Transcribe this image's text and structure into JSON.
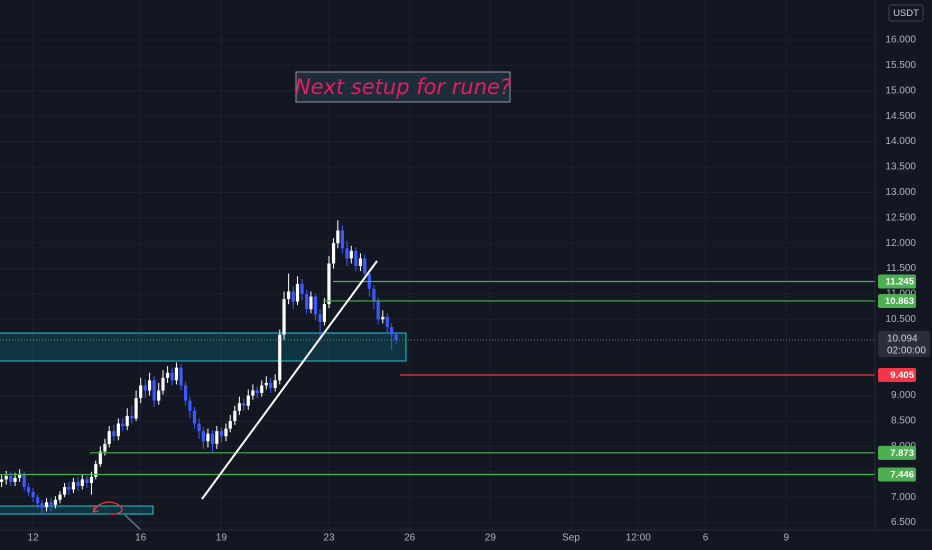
{
  "chart_data": {
    "type": "candlestick",
    "title": "Next setup for rune?",
    "currency": "USDT",
    "countdown": "02:00:00",
    "up_color": "#ffffff",
    "down_color": "#3d5afe",
    "grid": true,
    "xlim": [
      10.77,
      43.3
    ],
    "ylim": [
      6.354,
      16.787
    ],
    "xticks": [
      12,
      16,
      19,
      23,
      26,
      29,
      {
        "value": 32,
        "label": "Sep"
      },
      {
        "value": 34.5,
        "label": "12:00"
      },
      {
        "value": 37,
        "label": "6"
      },
      {
        "value": 40,
        "label": "9"
      }
    ],
    "yticks": [
      {
        "value": 6.5,
        "label": "6.500"
      },
      {
        "value": 7,
        "label": "7.000"
      },
      {
        "value": 7.5,
        "label": "7.500"
      },
      {
        "value": 8,
        "label": "8.000"
      },
      {
        "value": 8.5,
        "label": "8.500"
      },
      {
        "value": 9,
        "label": "9.000"
      },
      {
        "value": 10.5,
        "label": "10.500"
      },
      {
        "value": 11,
        "label": "11.000"
      },
      {
        "value": 11.5,
        "label": "11.500"
      },
      {
        "value": 12,
        "label": "12.000"
      },
      {
        "value": 12.5,
        "label": "12.500"
      },
      {
        "value": 13,
        "label": "13.000"
      },
      {
        "value": 13.5,
        "label": "13.500"
      },
      {
        "value": 14,
        "label": "14.000"
      },
      {
        "value": 14.5,
        "label": "14.500"
      },
      {
        "value": 15,
        "label": "15.000"
      },
      {
        "value": 15.5,
        "label": "15.500"
      },
      {
        "value": 16,
        "label": "16.000"
      }
    ],
    "levels": [
      {
        "value": 11.245,
        "color": "#4caf50"
      },
      {
        "value": 10.863,
        "color": "#4caf50"
      },
      {
        "value": 9.405,
        "color": "#f23645"
      },
      {
        "value": 7.873,
        "color": "#4caf50"
      },
      {
        "value": 7.446,
        "color": "#4caf50"
      }
    ],
    "x": [
      10.83,
      11,
      11.17,
      11.33,
      11.5,
      11.67,
      11.83,
      12,
      12.17,
      12.33,
      12.5,
      12.67,
      12.83,
      13,
      13.17,
      13.33,
      13.5,
      13.67,
      13.83,
      14,
      14.17,
      14.33,
      14.5,
      14.67,
      14.83,
      15,
      15.17,
      15.33,
      15.5,
      15.67,
      15.83,
      16,
      16.17,
      16.33,
      16.5,
      16.67,
      16.83,
      17,
      17.17,
      17.33,
      17.5,
      17.67,
      17.83,
      18,
      18.17,
      18.33,
      18.5,
      18.67,
      18.83,
      19,
      19.17,
      19.33,
      19.5,
      19.67,
      19.83,
      20,
      20.17,
      20.33,
      20.5,
      20.67,
      20.83,
      21,
      21.17,
      21.33,
      21.5,
      21.67,
      21.83,
      22,
      22.17,
      22.33,
      22.5,
      22.67,
      22.83,
      23,
      23.17,
      23.33,
      23.5,
      23.67,
      23.83,
      24,
      24.17,
      24.33,
      24.5,
      24.67,
      24.83,
      25,
      25.17,
      25.33,
      25.5
    ],
    "open": [
      7.3,
      7.35,
      7.42,
      7.3,
      7.38,
      7.45,
      7.2,
      7.1,
      7.0,
      6.88,
      6.8,
      6.9,
      6.85,
      6.95,
      7.05,
      7.2,
      7.15,
      7.3,
      7.22,
      7.35,
      7.28,
      7.4,
      7.65,
      7.9,
      8.05,
      8.3,
      8.2,
      8.45,
      8.4,
      8.6,
      8.55,
      8.95,
      9.2,
      9.1,
      9.3,
      8.9,
      9.1,
      9.35,
      9.45,
      9.3,
      9.55,
      9.2,
      8.9,
      8.7,
      8.45,
      8.3,
      8.1,
      8.25,
      8.05,
      8.3,
      8.2,
      8.35,
      8.5,
      8.7,
      8.85,
      8.8,
      9.0,
      9.1,
      9.05,
      9.2,
      9.25,
      9.15,
      9.3,
      10.2,
      10.9,
      11.05,
      10.85,
      11.2,
      11.0,
      10.7,
      10.95,
      10.6,
      10.45,
      10.8,
      11.6,
      12.0,
      12.25,
      11.9,
      11.7,
      11.85,
      11.55,
      11.7,
      11.4,
      11.1,
      10.85,
      10.5,
      10.55,
      10.35,
      10.2
    ],
    "high": [
      7.45,
      7.52,
      7.5,
      7.48,
      7.55,
      7.5,
      7.28,
      7.18,
      7.05,
      6.95,
      6.98,
      6.98,
      7.02,
      7.12,
      7.28,
      7.3,
      7.38,
      7.4,
      7.45,
      7.42,
      7.5,
      7.72,
      8.0,
      8.15,
      8.4,
      8.42,
      8.55,
      8.55,
      8.75,
      8.8,
      9.1,
      9.35,
      9.32,
      9.45,
      9.38,
      9.25,
      9.5,
      9.58,
      9.55,
      9.65,
      9.62,
      9.28,
      8.98,
      8.78,
      8.55,
      8.38,
      8.35,
      8.32,
      8.4,
      8.38,
      8.45,
      8.62,
      8.8,
      8.98,
      8.95,
      9.12,
      9.22,
      9.18,
      9.3,
      9.38,
      9.35,
      9.42,
      10.3,
      11.05,
      11.4,
      11.15,
      11.35,
      11.3,
      11.08,
      11.05,
      11.0,
      10.7,
      10.92,
      11.75,
      12.1,
      12.45,
      12.35,
      12.05,
      11.95,
      11.92,
      11.8,
      11.78,
      11.48,
      11.18,
      10.92,
      10.68,
      10.62,
      10.42,
      10.25
    ],
    "low": [
      7.2,
      7.25,
      7.22,
      7.22,
      7.3,
      7.12,
      7.02,
      6.9,
      6.78,
      6.65,
      6.72,
      6.72,
      6.78,
      6.88,
      7.0,
      7.05,
      7.08,
      7.12,
      7.15,
      7.18,
      7.05,
      7.35,
      7.6,
      7.82,
      7.98,
      8.1,
      8.12,
      8.3,
      8.32,
      8.45,
      8.5,
      8.85,
      8.95,
      9.0,
      8.78,
      8.82,
      9.02,
      9.25,
      9.2,
      9.22,
      9.1,
      8.8,
      8.55,
      8.35,
      8.15,
      7.95,
      7.98,
      7.9,
      7.95,
      8.08,
      8.1,
      8.28,
      8.42,
      8.62,
      8.7,
      8.72,
      8.92,
      8.95,
      8.98,
      9.12,
      9.05,
      9.08,
      9.22,
      10.1,
      10.8,
      10.7,
      10.78,
      10.88,
      10.6,
      10.62,
      10.48,
      10.1,
      10.38,
      10.72,
      11.5,
      11.9,
      11.8,
      11.55,
      11.6,
      11.45,
      11.45,
      11.3,
      10.95,
      10.7,
      10.4,
      10.42,
      10.25,
      9.9,
      10.02
    ],
    "close": [
      7.35,
      7.42,
      7.3,
      7.38,
      7.45,
      7.2,
      7.1,
      7.0,
      6.88,
      6.8,
      6.9,
      6.85,
      6.95,
      7.05,
      7.2,
      7.15,
      7.3,
      7.22,
      7.35,
      7.28,
      7.4,
      7.65,
      7.9,
      8.05,
      8.3,
      8.2,
      8.45,
      8.4,
      8.6,
      8.55,
      8.95,
      9.2,
      9.1,
      9.3,
      8.9,
      9.1,
      9.35,
      9.45,
      9.3,
      9.55,
      9.2,
      8.9,
      8.7,
      8.45,
      8.3,
      8.1,
      8.25,
      8.05,
      8.3,
      8.2,
      8.35,
      8.5,
      8.7,
      8.85,
      8.8,
      9.0,
      9.1,
      9.05,
      9.2,
      9.25,
      9.15,
      9.3,
      10.2,
      10.9,
      11.05,
      10.85,
      11.2,
      11.0,
      10.7,
      10.95,
      10.6,
      10.45,
      10.8,
      11.6,
      12.0,
      12.25,
      11.9,
      11.7,
      11.85,
      11.55,
      11.7,
      11.4,
      11.1,
      10.85,
      10.5,
      10.55,
      10.35,
      10.2,
      10.094
    ]
  }
}
